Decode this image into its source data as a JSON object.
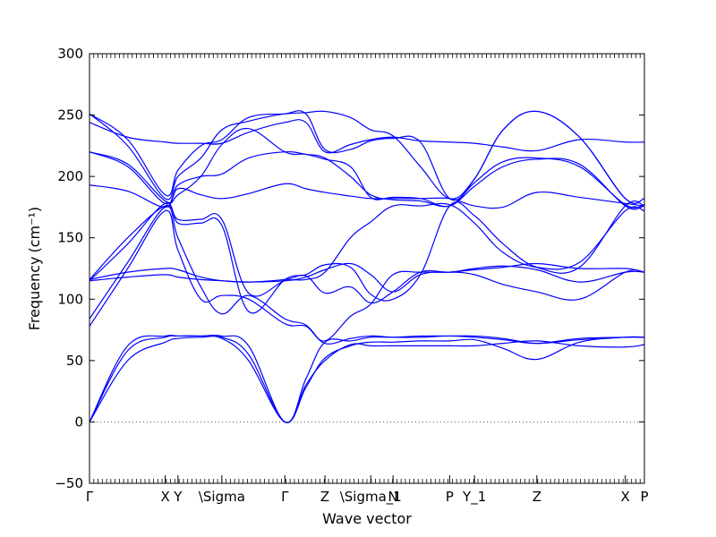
{
  "chart_data": {
    "type": "line",
    "title": "",
    "xlabel": "Wave vector",
    "ylabel": "Frequency",
    "ylabel_unit": "(cm⁻¹)",
    "ylim": [
      -50,
      300
    ],
    "yticks": [
      -50,
      0,
      50,
      100,
      150,
      200,
      250,
      300
    ],
    "zero_line": 0,
    "grid": false,
    "legend": "none",
    "line_color": "#0000ff",
    "xlim": [
      0,
      8.72
    ],
    "high_symmetry_points": [
      {
        "label": "Γ",
        "x": 0.0
      },
      {
        "label": "X",
        "x": 1.19
      },
      {
        "label": "Y",
        "x": 1.39
      },
      {
        "label": "\\Sigma",
        "x": 2.08
      },
      {
        "label": "Γ",
        "x": 3.07
      },
      {
        "label": "Z",
        "x": 3.7
      },
      {
        "label": "\\Sigma_1",
        "x": 4.42
      },
      {
        "label": "N",
        "x": 4.77
      },
      {
        "label": "P",
        "x": 5.66
      },
      {
        "label": "Y_1",
        "x": 6.05
      },
      {
        "label": "Z",
        "x": 7.03
      },
      {
        "label": "X",
        "x": 8.42
      },
      {
        "label": "P",
        "x": 8.72
      }
    ],
    "x": [
      0.0,
      0.6,
      1.19,
      1.39,
      1.75,
      2.08,
      2.5,
      3.07,
      3.4,
      3.7,
      4.1,
      4.42,
      4.77,
      5.2,
      5.66,
      6.05,
      6.5,
      7.03,
      7.7,
      8.42,
      8.72
    ],
    "series": [
      {
        "values": [
          0,
          62,
          70,
          70,
          70,
          70,
          62,
          0,
          35,
          65,
          66,
          69,
          69,
          70,
          70,
          70,
          68,
          64,
          67,
          69,
          69
        ]
      },
      {
        "values": [
          0,
          58,
          69,
          70,
          70,
          69,
          55,
          0,
          30,
          50,
          63,
          62,
          62,
          62,
          62,
          62,
          64,
          66,
          62,
          61,
          63
        ]
      },
      {
        "values": [
          0,
          50,
          65,
          68,
          69,
          68,
          50,
          0,
          28,
          52,
          62,
          65,
          65,
          66,
          66,
          67,
          60,
          51,
          65,
          69,
          69
        ]
      },
      {
        "values": [
          84,
          130,
          175,
          150,
          110,
          88,
          103,
          84,
          79,
          64,
          68,
          70,
          69,
          69,
          70,
          69,
          67,
          64,
          68,
          69,
          69
        ]
      },
      {
        "values": [
          78,
          125,
          172,
          140,
          100,
          103,
          100,
          80,
          78,
          66,
          86,
          96,
          120,
          122,
          122,
          125,
          127,
          124,
          114,
          122,
          122
        ]
      },
      {
        "values": [
          116,
          122,
          125,
          124,
          118,
          115,
          114,
          116,
          119,
          105,
          110,
          97,
          106,
          122,
          122,
          124,
          126,
          129,
          125,
          125,
          122
        ]
      },
      {
        "values": [
          115,
          118,
          120,
          118,
          116,
          115,
          114,
          115,
          118,
          124,
          129,
          120,
          106,
          120,
          122,
          120,
          112,
          106,
          100,
          122,
          122
        ]
      },
      {
        "values": [
          115,
          145,
          178,
          162,
          162,
          160,
          90,
          116,
          120,
          128,
          126,
          104,
          100,
          120,
          176,
          168,
          145,
          126,
          126,
          176,
          176
        ]
      },
      {
        "values": [
          116,
          150,
          176,
          165,
          165,
          165,
          105,
          115,
          116,
          122,
          150,
          163,
          176,
          176,
          177,
          162,
          138,
          126,
          130,
          172,
          172
        ]
      },
      {
        "values": [
          193,
          188,
          175,
          190,
          185,
          182,
          186,
          194,
          190,
          187,
          184,
          182,
          182,
          182,
          182,
          176,
          175,
          187,
          183,
          178,
          176
        ]
      },
      {
        "values": [
          220,
          208,
          178,
          193,
          200,
          202,
          215,
          220,
          218,
          215,
          200,
          185,
          181,
          180,
          176,
          192,
          208,
          214,
          210,
          176,
          176
        ]
      },
      {
        "values": [
          220,
          210,
          180,
          185,
          200,
          226,
          239,
          220,
          218,
          214,
          208,
          183,
          183,
          182,
          176,
          195,
          212,
          215,
          208,
          177,
          177
        ]
      },
      {
        "values": [
          244,
          232,
          228,
          227,
          227,
          227,
          236,
          244,
          244,
          220,
          226,
          230,
          232,
          229,
          228,
          227,
          224,
          221,
          230,
          228,
          228
        ]
      },
      {
        "values": [
          251,
          225,
          182,
          200,
          215,
          238,
          245,
          251,
          251,
          222,
          222,
          229,
          231,
          228,
          182,
          198,
          238,
          253,
          232,
          182,
          182
        ]
      },
      {
        "values": [
          251,
          230,
          185,
          205,
          225,
          230,
          248,
          251,
          252,
          253,
          248,
          238,
          233,
          208,
          182,
          198,
          238,
          253,
          232,
          182,
          182
        ]
      }
    ]
  }
}
